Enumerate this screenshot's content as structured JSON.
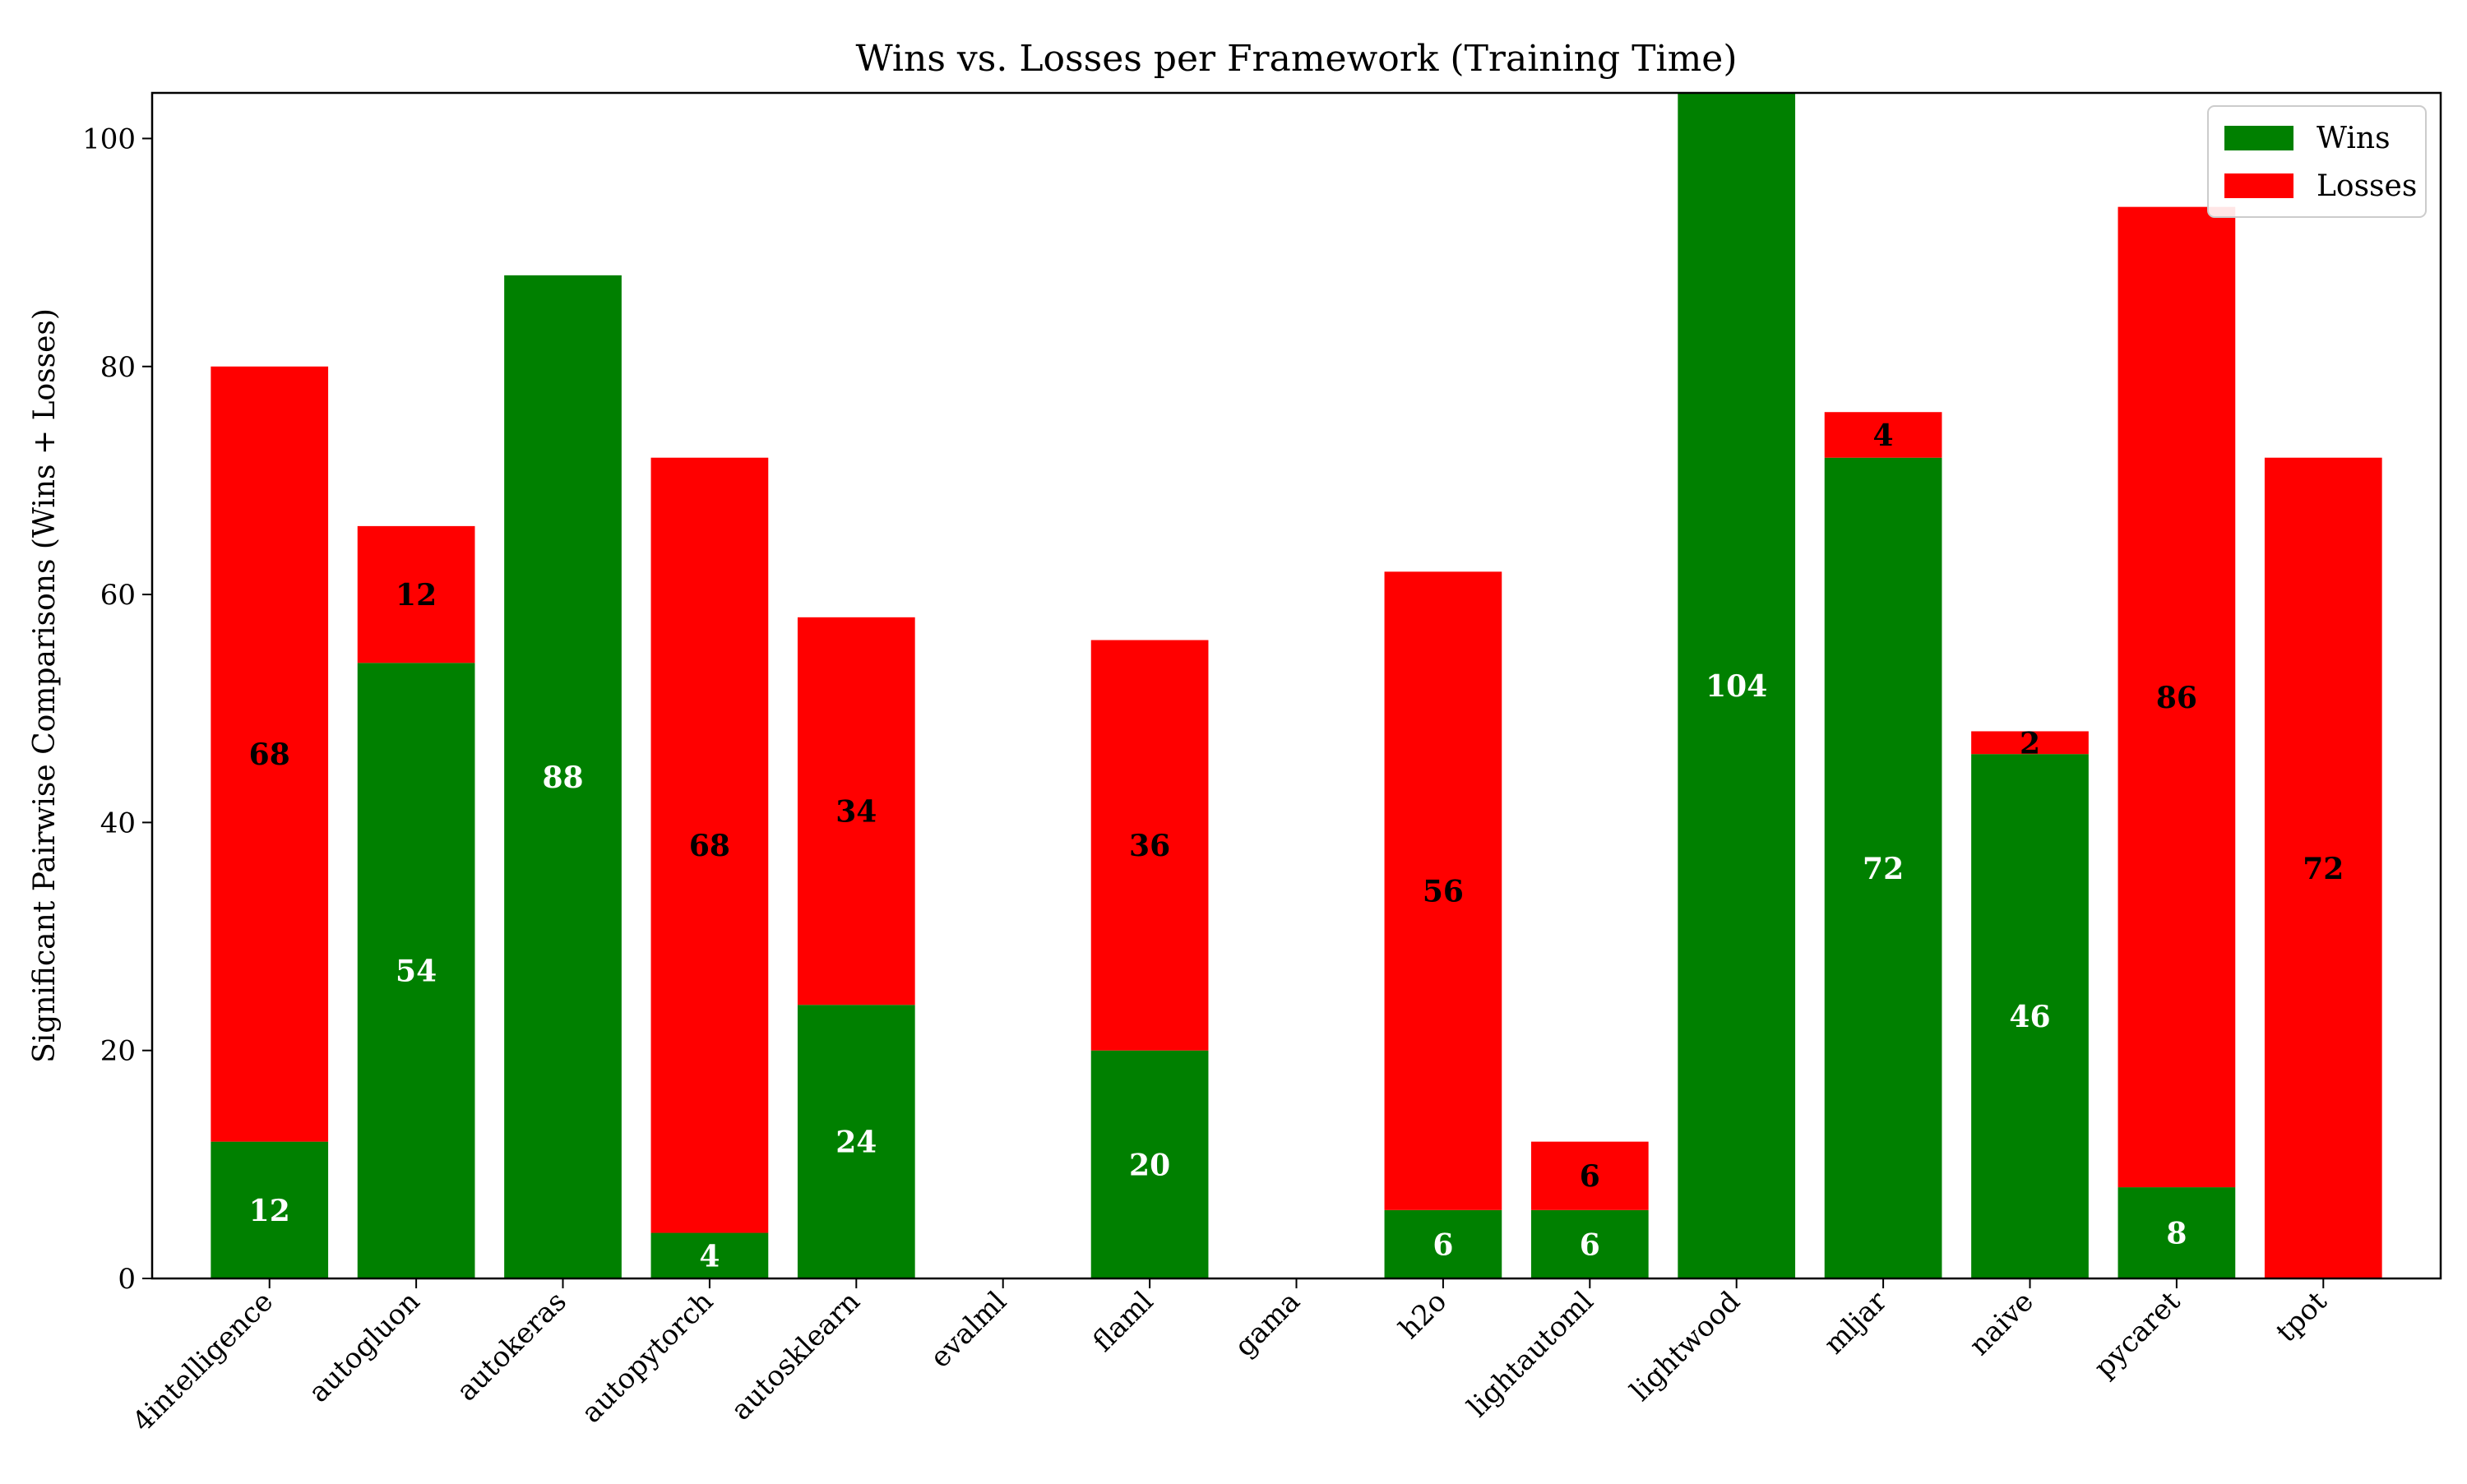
{
  "chart_data": {
    "type": "bar",
    "stacked": true,
    "title": "Wins vs. Losses per Framework (Training Time)",
    "xlabel": "",
    "ylabel": "Significant Pairwise Comparisons (Wins + Losses)",
    "ylim": [
      0,
      104
    ],
    "yticks": [
      0,
      20,
      40,
      60,
      80,
      100
    ],
    "grid": false,
    "legend_position": "top-right",
    "categories": [
      "4intelligence",
      "autogluon",
      "autokeras",
      "autopytorch",
      "autosklearn",
      "evalml",
      "flaml",
      "gama",
      "h2o",
      "lightautoml",
      "lightwood",
      "mljar",
      "naive",
      "pycaret",
      "tpot"
    ],
    "series": [
      {
        "name": "Wins",
        "color": "#008000",
        "label_color": "#ffffff",
        "values": [
          12,
          54,
          88,
          4,
          24,
          0,
          20,
          0,
          6,
          6,
          104,
          72,
          46,
          8,
          0
        ]
      },
      {
        "name": "Losses",
        "color": "#ff0000",
        "label_color": "#000000",
        "values": [
          68,
          12,
          0,
          68,
          34,
          0,
          36,
          0,
          56,
          6,
          0,
          4,
          2,
          86,
          72
        ]
      }
    ]
  }
}
